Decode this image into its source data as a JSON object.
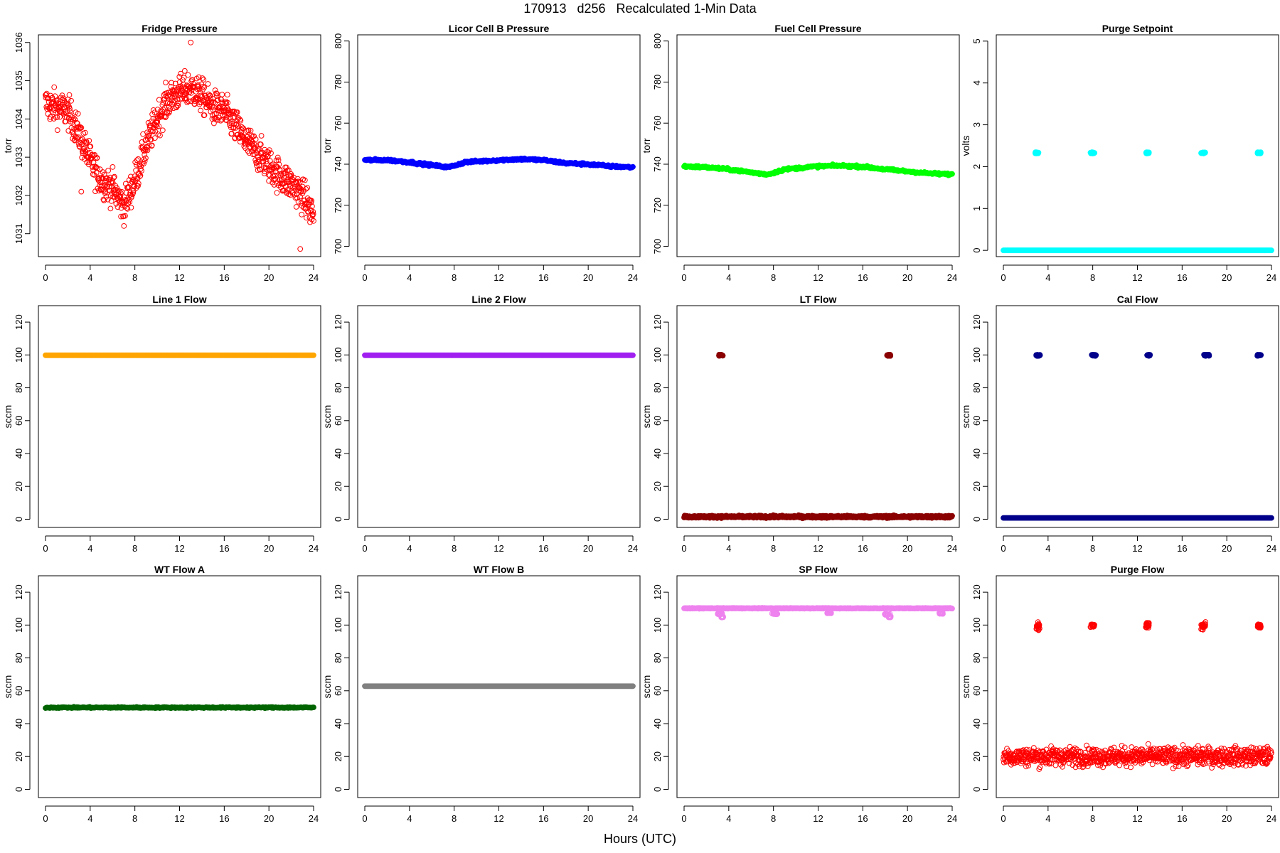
{
  "page": {
    "title": "170913   d256   Recalculated 1-Min Data",
    "xlabel": "Hours (UTC)"
  },
  "chart_data": [
    {
      "type": "scatter",
      "title": "Fridge Pressure",
      "ylabel": "torr",
      "xlim": [
        0,
        24
      ],
      "ylim": [
        1030.4,
        1036.2
      ],
      "yticks": [
        1031,
        1032,
        1033,
        1034,
        1035,
        1036
      ],
      "xticks": [
        0,
        4,
        8,
        12,
        16,
        20,
        24
      ],
      "color": "#ff0000",
      "marker": "open-circle",
      "series": [
        {
          "x": [
            0,
            1,
            2,
            3,
            4,
            5,
            6,
            7,
            8,
            9,
            10,
            11,
            12,
            13,
            14,
            15,
            16,
            17,
            18,
            19,
            20,
            21,
            22,
            23,
            24
          ],
          "y": [
            1034.4,
            1034.3,
            1034.2,
            1033.6,
            1032.9,
            1032.4,
            1032.2,
            1031.7,
            1032.4,
            1033.3,
            1034.0,
            1034.5,
            1034.7,
            1034.8,
            1034.6,
            1034.3,
            1034.2,
            1033.8,
            1033.4,
            1033.1,
            1032.8,
            1032.5,
            1032.3,
            1032.0,
            1031.5
          ],
          "noise": 0.32
        }
      ],
      "outliers": [
        [
          3.2,
          1032.1
        ],
        [
          13.0,
          1036.0
        ],
        [
          22.8,
          1030.6
        ]
      ]
    },
    {
      "type": "scatter",
      "title": "Licor Cell B Pressure",
      "ylabel": "torr",
      "xlim": [
        0,
        24
      ],
      "ylim": [
        695,
        803
      ],
      "yticks": [
        700,
        720,
        740,
        760,
        780,
        800
      ],
      "xticks": [
        0,
        4,
        8,
        12,
        16,
        20,
        24
      ],
      "color": "#0000ff",
      "marker": "filled-circle",
      "series": [
        {
          "x": [
            0,
            2,
            4,
            6,
            7.5,
            9,
            12,
            14,
            16,
            18,
            20,
            22,
            24
          ],
          "y": [
            742,
            742,
            741,
            739.5,
            738.5,
            741,
            742,
            742.5,
            742,
            740.5,
            740,
            739,
            738.5
          ],
          "noise": 0.4
        }
      ]
    },
    {
      "type": "scatter",
      "title": "Fuel Cell Pressure",
      "ylabel": "torr",
      "xlim": [
        0,
        24
      ],
      "ylim": [
        695,
        803
      ],
      "yticks": [
        700,
        720,
        740,
        760,
        780,
        800
      ],
      "xticks": [
        0,
        4,
        8,
        12,
        16,
        20,
        24
      ],
      "color": "#00ff00",
      "marker": "filled-circle",
      "series": [
        {
          "x": [
            0,
            2,
            4,
            6,
            7.5,
            9,
            12,
            14,
            16,
            18,
            20,
            22,
            24
          ],
          "y": [
            739,
            738.5,
            737.5,
            736,
            735,
            737.5,
            739,
            739.3,
            738.8,
            737.5,
            736.5,
            735.5,
            735
          ],
          "noise": 0.4
        }
      ]
    },
    {
      "type": "scatter",
      "title": "Purge Setpoint",
      "ylabel": "volts",
      "xlim": [
        0,
        24
      ],
      "ylim": [
        -0.15,
        5.15
      ],
      "yticks": [
        0,
        1,
        2,
        3,
        4,
        5
      ],
      "xticks": [
        0,
        4,
        8,
        12,
        16,
        20,
        24
      ],
      "color": "#00ffff",
      "marker": "filled-circle",
      "series": [
        {
          "x": [
            0,
            24
          ],
          "y": [
            0,
            0
          ],
          "noise": 0
        }
      ],
      "clusters": [
        {
          "x": 3.0,
          "y": 2.33,
          "spread": 0.3
        },
        {
          "x": 8.0,
          "y": 2.33,
          "spread": 0.4
        },
        {
          "x": 12.9,
          "y": 2.33,
          "spread": 0.3
        },
        {
          "x": 17.9,
          "y": 2.33,
          "spread": 0.4
        },
        {
          "x": 22.9,
          "y": 2.33,
          "spread": 0.3
        }
      ]
    },
    {
      "type": "scatter",
      "title": "Line 1 Flow",
      "ylabel": "sccm",
      "xlim": [
        0,
        24
      ],
      "ylim": [
        -5,
        130
      ],
      "yticks": [
        0,
        20,
        40,
        60,
        80,
        100,
        120
      ],
      "xticks": [
        0,
        4,
        8,
        12,
        16,
        20,
        24
      ],
      "color": "#ffa500",
      "marker": "filled-circle",
      "series": [
        {
          "x": [
            0,
            24
          ],
          "y": [
            99.8,
            99.8
          ],
          "noise": 0
        }
      ]
    },
    {
      "type": "scatter",
      "title": "Line 2 Flow",
      "ylabel": "sccm",
      "xlim": [
        0,
        24
      ],
      "ylim": [
        -5,
        130
      ],
      "yticks": [
        0,
        20,
        40,
        60,
        80,
        100,
        120
      ],
      "xticks": [
        0,
        4,
        8,
        12,
        16,
        20,
        24
      ],
      "color": "#a020f0",
      "marker": "filled-circle",
      "series": [
        {
          "x": [
            0,
            24
          ],
          "y": [
            99.8,
            99.8
          ],
          "noise": 0
        }
      ]
    },
    {
      "type": "scatter",
      "title": "LT Flow",
      "ylabel": "sccm",
      "xlim": [
        0,
        24
      ],
      "ylim": [
        -5,
        130
      ],
      "yticks": [
        0,
        20,
        40,
        60,
        80,
        100,
        120
      ],
      "xticks": [
        0,
        4,
        8,
        12,
        16,
        20,
        24
      ],
      "color": "#8b0000",
      "marker": "filled-circle",
      "series": [
        {
          "x": [
            0,
            24
          ],
          "y": [
            1.5,
            1.5
          ],
          "noise": 0.5
        }
      ],
      "clusters": [
        {
          "x": 3.3,
          "y": 99.8,
          "spread": 0.35
        },
        {
          "x": 18.3,
          "y": 99.8,
          "spread": 0.35
        }
      ]
    },
    {
      "type": "scatter",
      "title": "Cal Flow",
      "ylabel": "sccm",
      "xlim": [
        0,
        24
      ],
      "ylim": [
        -5,
        130
      ],
      "yticks": [
        0,
        20,
        40,
        60,
        80,
        100,
        120
      ],
      "xticks": [
        0,
        4,
        8,
        12,
        16,
        20,
        24
      ],
      "color": "#00008b",
      "marker": "filled-circle",
      "series": [
        {
          "x": [
            0,
            24
          ],
          "y": [
            0.8,
            0.8
          ],
          "noise": 0
        }
      ],
      "clusters": [
        {
          "x": 3.1,
          "y": 99.8,
          "spread": 0.35
        },
        {
          "x": 8.1,
          "y": 99.8,
          "spread": 0.4
        },
        {
          "x": 13.0,
          "y": 99.8,
          "spread": 0.3
        },
        {
          "x": 18.2,
          "y": 99.8,
          "spread": 0.5
        },
        {
          "x": 22.9,
          "y": 99.8,
          "spread": 0.35
        }
      ]
    },
    {
      "type": "scatter",
      "title": "WT Flow A",
      "ylabel": "sccm",
      "xlim": [
        0,
        24
      ],
      "ylim": [
        -5,
        130
      ],
      "yticks": [
        0,
        20,
        40,
        60,
        80,
        100,
        120
      ],
      "xticks": [
        0,
        4,
        8,
        12,
        16,
        20,
        24
      ],
      "color": "#006400",
      "marker": "filled-circle",
      "series": [
        {
          "x": [
            0,
            24
          ],
          "y": [
            49.8,
            49.8
          ],
          "noise": 0.25
        }
      ]
    },
    {
      "type": "scatter",
      "title": "WT Flow B",
      "ylabel": "sccm",
      "xlim": [
        0,
        24
      ],
      "ylim": [
        -5,
        130
      ],
      "yticks": [
        0,
        20,
        40,
        60,
        80,
        100,
        120
      ],
      "xticks": [
        0,
        4,
        8,
        12,
        16,
        20,
        24
      ],
      "color": "#808080",
      "marker": "filled-circle",
      "series": [
        {
          "x": [
            0,
            24
          ],
          "y": [
            62.8,
            62.8
          ],
          "noise": 0
        }
      ]
    },
    {
      "type": "scatter",
      "title": "SP Flow",
      "ylabel": "sccm",
      "xlim": [
        0,
        24
      ],
      "ylim": [
        -5,
        130
      ],
      "yticks": [
        0,
        20,
        40,
        60,
        80,
        100,
        120
      ],
      "xticks": [
        0,
        4,
        8,
        12,
        16,
        20,
        24
      ],
      "color": "#ee82ee",
      "marker": "open-circle",
      "series": [
        {
          "x": [
            0,
            24
          ],
          "y": [
            110.2,
            110.2
          ],
          "noise": 0.15
        }
      ],
      "clusters": [
        {
          "x": 3.2,
          "y": 107,
          "spread": 0.4
        },
        {
          "x": 3.4,
          "y": 105,
          "spread": 0.2
        },
        {
          "x": 8.1,
          "y": 107,
          "spread": 0.5
        },
        {
          "x": 13.0,
          "y": 107.5,
          "spread": 0.4
        },
        {
          "x": 18.2,
          "y": 106.5,
          "spread": 0.5
        },
        {
          "x": 18.4,
          "y": 105,
          "spread": 0.2
        },
        {
          "x": 23.0,
          "y": 107.2,
          "spread": 0.4
        }
      ]
    },
    {
      "type": "scatter",
      "title": "Purge Flow",
      "ylabel": "sccm",
      "xlim": [
        0,
        24
      ],
      "ylim": [
        -5,
        130
      ],
      "yticks": [
        0,
        20,
        40,
        60,
        80,
        100,
        120
      ],
      "xticks": [
        0,
        4,
        8,
        12,
        16,
        20,
        24
      ],
      "color": "#ff0000",
      "marker": "open-circle",
      "series": [
        {
          "x": [
            0,
            24
          ],
          "y": [
            20,
            20
          ],
          "noise": 4.0
        }
      ],
      "clusters": [
        {
          "x": 3.1,
          "y": 99.5,
          "spread": 0.3,
          "yspread": 3
        },
        {
          "x": 8.0,
          "y": 99.5,
          "spread": 0.4,
          "yspread": 2
        },
        {
          "x": 12.9,
          "y": 99.5,
          "spread": 0.3,
          "yspread": 3
        },
        {
          "x": 17.9,
          "y": 99.5,
          "spread": 0.4,
          "yspread": 3
        },
        {
          "x": 22.9,
          "y": 99.5,
          "spread": 0.3,
          "yspread": 2
        }
      ]
    }
  ]
}
